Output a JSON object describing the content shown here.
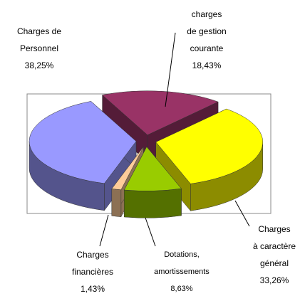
{
  "chart_data": {
    "type": "pie3d",
    "categories": [
      "charges\nde gestion\ncourante",
      "Charges\nà caractère\ngénéral",
      "Dotations,\namortissements",
      "Charges\nfinancières",
      "Charges de\nPersonnel"
    ],
    "values": [
      18.43,
      33.26,
      8.63,
      1.43,
      38.25
    ],
    "value_labels": [
      "18,43%",
      "33,26%",
      "8,63%",
      "1,43%",
      "38,25%"
    ],
    "colors": [
      "#993366",
      "#ffff00",
      "#99cc00",
      "#ffcc99",
      "#9999ff"
    ]
  }
}
